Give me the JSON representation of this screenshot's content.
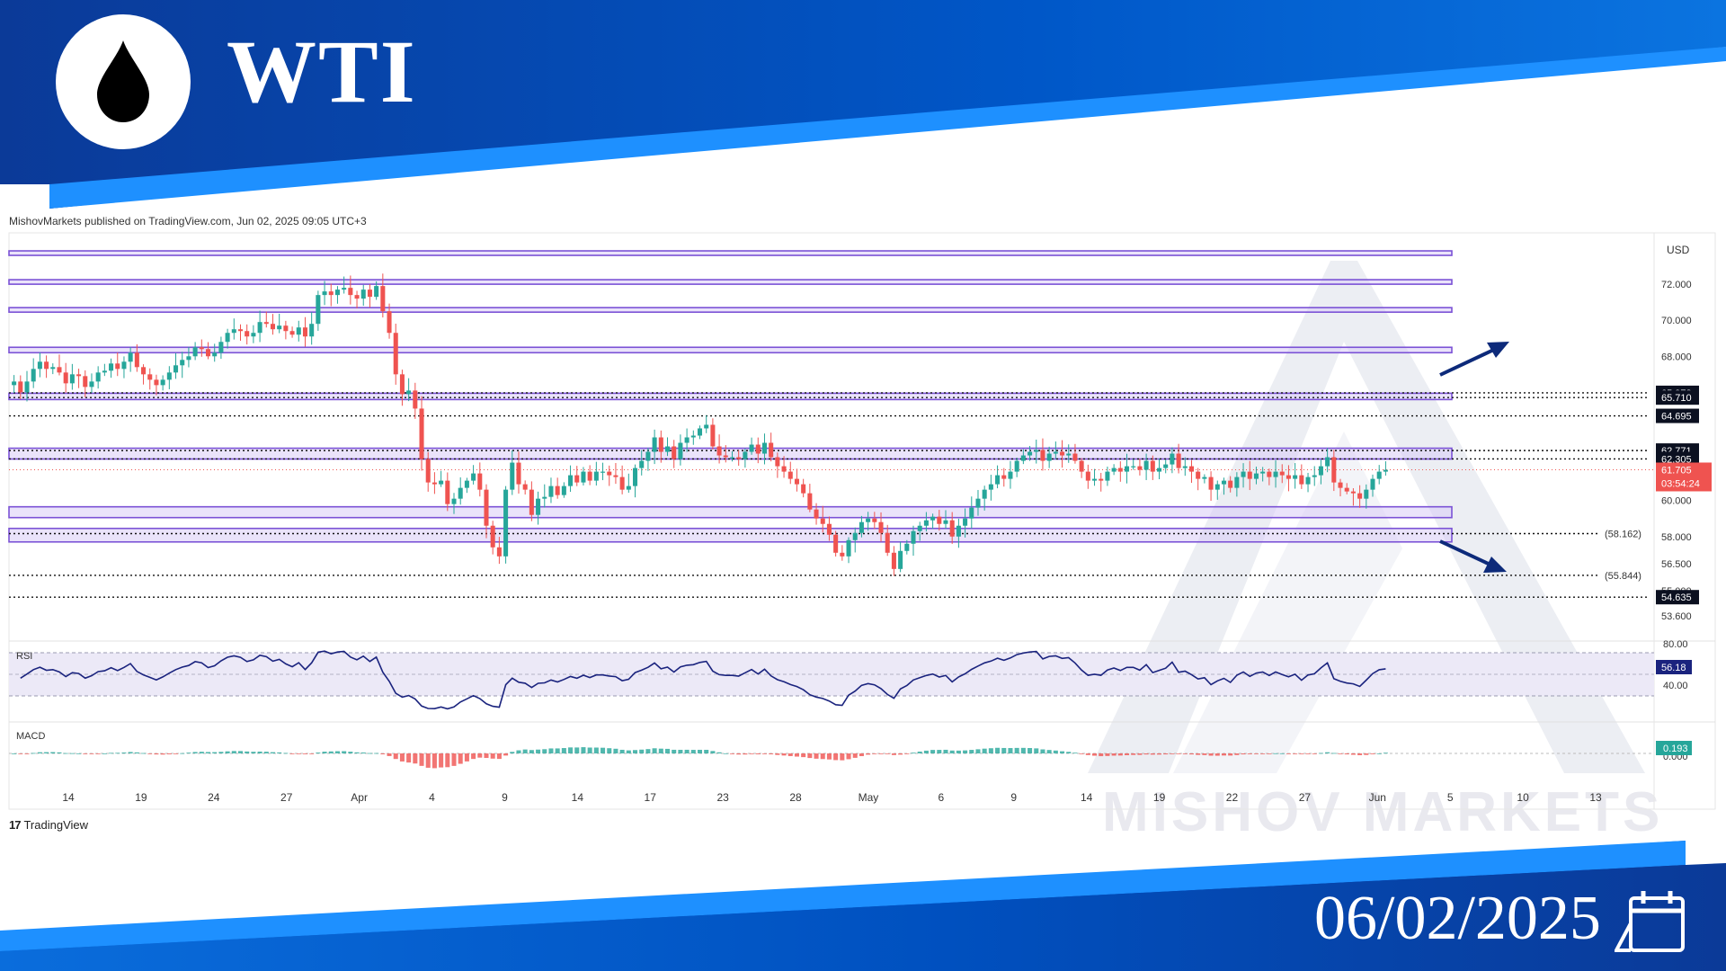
{
  "header": {
    "title": "WTI",
    "date": "06/02/2025"
  },
  "icons": {
    "logo": "oil-drop-icon",
    "calendar": "calendar-icon"
  },
  "colors": {
    "brand_dark": "#0a3c9c",
    "brand": "#0060d0",
    "brand_light": "#1e90ff",
    "zone": "#7b52d6",
    "up": "#26a69a",
    "down": "#ef5350",
    "rsi": "#1a237e"
  },
  "published": "MishovMarkets published on TradingView.com, Jun 02, 2025 09:05 UTC+3",
  "watermark": "MISHOV  MARKETS",
  "tradingview": "TradingView",
  "chart_data": {
    "type": "candlestick",
    "currency": "USD",
    "ylim": [
      52.6,
      74.4
    ],
    "y_ticks": [
      "72.000",
      "70.000",
      "68.000",
      "60.000",
      "58.000",
      "56.500",
      "55.000",
      "53.600"
    ],
    "x_ticks": [
      "14",
      "19",
      "24",
      "27",
      "Apr",
      "4",
      "9",
      "14",
      "17",
      "23",
      "28",
      "May",
      "6",
      "9",
      "14",
      "19",
      "22",
      "27",
      "Jun",
      "5",
      "10",
      "13"
    ],
    "last_price": "61.705",
    "countdown": "03:54:24",
    "price_labels": [
      "65.973",
      "65.710",
      "64.695",
      "62.771",
      "62.305",
      "54.635"
    ],
    "dotted_levels": [
      {
        "value": 65.973,
        "label": ""
      },
      {
        "value": 65.71,
        "label": ""
      },
      {
        "value": 64.695,
        "label": ""
      },
      {
        "value": 62.771,
        "label": ""
      },
      {
        "value": 62.305,
        "label": ""
      },
      {
        "value": 58.162,
        "label": "(58.162)"
      },
      {
        "value": 55.844,
        "label": "(55.844)"
      },
      {
        "value": 54.635,
        "label": ""
      }
    ],
    "zones": [
      [
        73.6,
        73.85
      ],
      [
        72.0,
        72.25
      ],
      [
        70.45,
        70.7
      ],
      [
        68.2,
        68.5
      ],
      [
        65.6,
        65.95
      ],
      [
        62.3,
        62.9
      ],
      [
        59.05,
        59.65
      ],
      [
        57.7,
        58.45
      ]
    ],
    "close": [
      66.6,
      66.0,
      66.6,
      67.3,
      67.7,
      67.3,
      67.4,
      67.1,
      66.5,
      67.0,
      66.9,
      66.3,
      66.6,
      67.1,
      67.2,
      67.6,
      67.3,
      67.7,
      68.2,
      67.4,
      67.0,
      66.7,
      66.4,
      66.7,
      67.1,
      67.5,
      67.8,
      68.0,
      68.5,
      68.4,
      68.0,
      68.2,
      68.8,
      69.3,
      69.5,
      69.4,
      69.1,
      69.3,
      69.9,
      69.8,
      69.5,
      69.7,
      69.4,
      69.2,
      69.6,
      69.1,
      69.8,
      71.4,
      71.6,
      71.4,
      71.7,
      71.8,
      71.4,
      71.2,
      71.7,
      71.3,
      71.9,
      70.5,
      69.3,
      67.0,
      65.9,
      66.1,
      65.1,
      62.3,
      61.0,
      60.9,
      61.1,
      59.8,
      60.1,
      60.7,
      61.1,
      61.5,
      60.6,
      58.6,
      57.4,
      56.9,
      60.6,
      62.1,
      60.9,
      60.6,
      59.2,
      60.1,
      60.2,
      60.8,
      60.3,
      60.8,
      61.4,
      61.0,
      61.6,
      61.1,
      61.6,
      61.6,
      61.4,
      61.3,
      60.6,
      60.8,
      61.8,
      62.2,
      62.7,
      63.5,
      62.7,
      63.0,
      62.3,
      63.2,
      63.5,
      63.6,
      64.0,
      64.2,
      63.0,
      62.5,
      62.4,
      62.4,
      62.3,
      62.7,
      63.1,
      62.6,
      63.2,
      62.4,
      61.9,
      61.6,
      61.2,
      60.9,
      60.4,
      59.5,
      59.0,
      58.7,
      58.1,
      57.1,
      56.9,
      57.8,
      58.2,
      58.8,
      59.0,
      58.8,
      58.2,
      57.1,
      56.2,
      57.2,
      57.6,
      58.3,
      58.6,
      58.9,
      59.1,
      58.7,
      58.9,
      58.0,
      58.6,
      59.0,
      59.6,
      60.1,
      60.6,
      60.9,
      61.4,
      61.2,
      61.6,
      62.2,
      62.5,
      62.7,
      62.8,
      62.2,
      62.6,
      62.7,
      62.5,
      62.6,
      62.2,
      61.6,
      61.1,
      61.2,
      61.1,
      61.6,
      61.8,
      61.6,
      61.9,
      61.9,
      61.7,
      62.2,
      61.6,
      61.8,
      62.0,
      62.6,
      61.8,
      61.9,
      61.6,
      61.2,
      61.3,
      60.6,
      60.9,
      61.1,
      60.7,
      61.3,
      61.6,
      61.2,
      61.5,
      61.6,
      61.3,
      61.6,
      61.4,
      61.2,
      61.4,
      60.9,
      61.3,
      61.4,
      61.9,
      62.4,
      61.0,
      60.7,
      60.5,
      60.4,
      60.1,
      60.6,
      61.2,
      61.6,
      61.7
    ],
    "rsi": {
      "value": "56.18",
      "ticks": [
        "80.00",
        "40.00"
      ],
      "band": [
        30,
        70
      ]
    },
    "macd": {
      "value": "0.193",
      "ticks": [
        "0.000"
      ]
    }
  }
}
